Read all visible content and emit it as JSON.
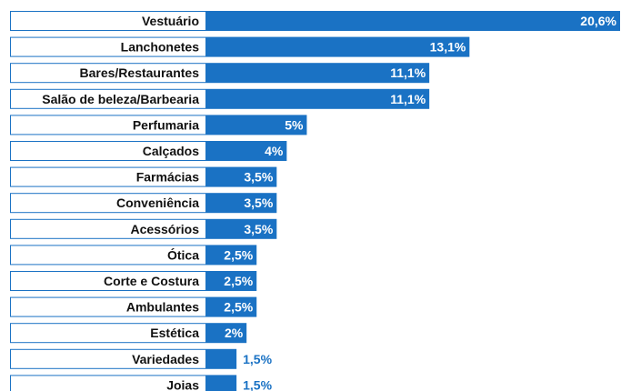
{
  "chart_data": {
    "type": "bar",
    "orientation": "horizontal",
    "title": "",
    "xlabel": "",
    "ylabel": "",
    "xlim": [
      0,
      20.6
    ],
    "grid": false,
    "legend": "none",
    "colors": {
      "bar": "#1a72c4",
      "value_on_bar": "#ffffff",
      "value_outside": "#1a72c4",
      "label_box_border": "#1a72c4",
      "label_text": "#111111"
    },
    "categories": [
      "Vestuário",
      "Lanchonetes",
      "Bares/Restaurantes",
      "Salão de beleza/Barbearia",
      "Perfumaria",
      "Calçados",
      "Farmácias",
      "Conveniência",
      "Acessórios",
      "Ótica",
      "Corte e Costura",
      "Ambulantes",
      "Estética",
      "Variedades",
      "Joias"
    ],
    "values": [
      20.6,
      13.1,
      11.1,
      11.1,
      5,
      4,
      3.5,
      3.5,
      3.5,
      2.5,
      2.5,
      2.5,
      2,
      1.5,
      1.5
    ],
    "value_labels": [
      "20,6%",
      "13,1%",
      "11,1%",
      "11,1%",
      "5%",
      "4%",
      "3,5%",
      "3,5%",
      "3,5%",
      "2,5%",
      "2,5%",
      "2,5%",
      "2%",
      "1,5%",
      "1,5%"
    ]
  }
}
